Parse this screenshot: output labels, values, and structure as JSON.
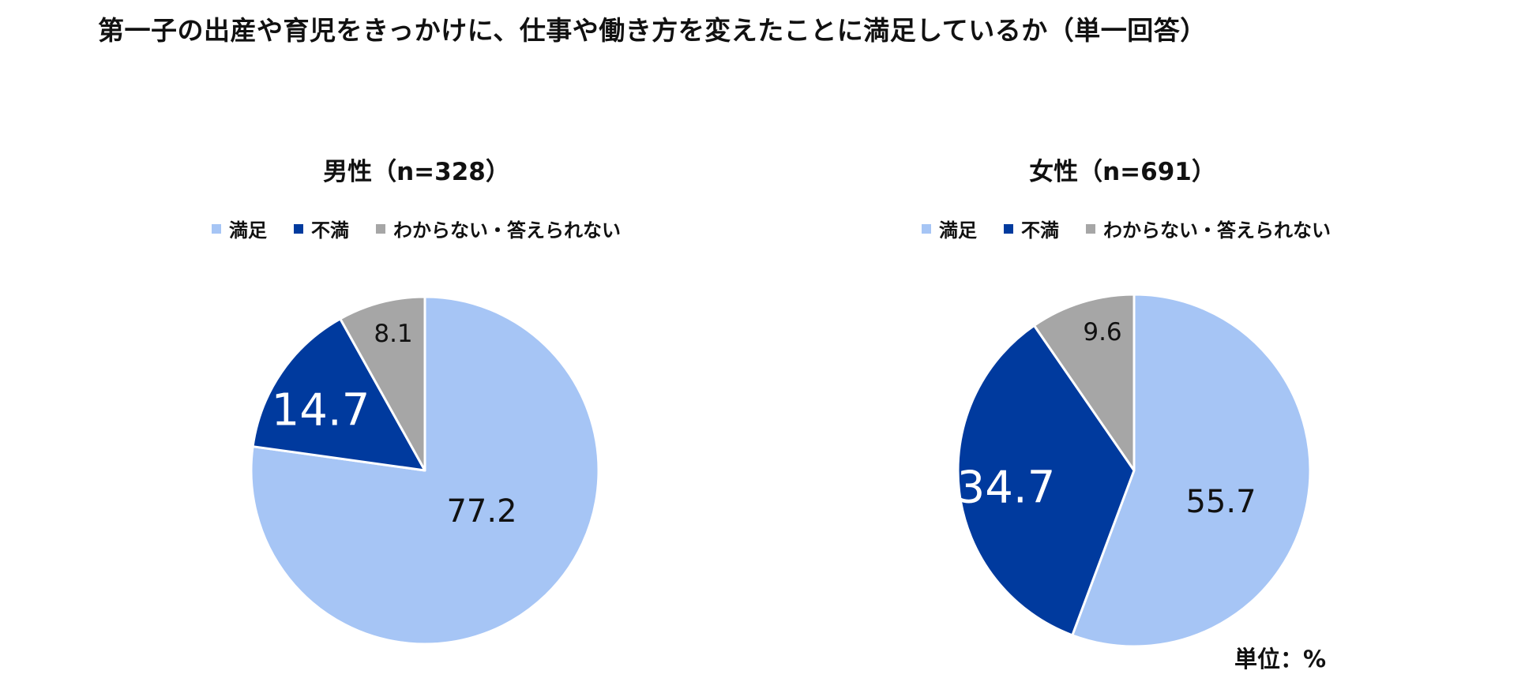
{
  "title": "第一子の出産や育児をきっかけに、仕事や働き方を変えたことに満足しているか（単一回答）",
  "unit_note": "単位：%",
  "colors": {
    "satisfied": "#a6c5f5",
    "dissatisfied": "#003a9e",
    "unknown": "#a6a6a6"
  },
  "chart_data": [
    {
      "type": "pie",
      "title": "男性（n=328）",
      "categories": [
        "満足",
        "不満",
        "わからない・答えられない"
      ],
      "values": [
        77.2,
        14.7,
        8.1
      ],
      "value_labels": [
        "77.2",
        "14.7",
        "8.1"
      ],
      "colors": [
        "#a6c5f5",
        "#003a9e",
        "#a6a6a6"
      ],
      "legend": "top"
    },
    {
      "type": "pie",
      "title": "女性（n=691）",
      "categories": [
        "満足",
        "不満",
        "わからない・答えられない"
      ],
      "values": [
        55.7,
        34.7,
        9.6
      ],
      "value_labels": [
        "55.7",
        "34.7",
        "9.6"
      ],
      "colors": [
        "#a6c5f5",
        "#003a9e",
        "#a6a6a6"
      ],
      "legend": "top"
    }
  ]
}
